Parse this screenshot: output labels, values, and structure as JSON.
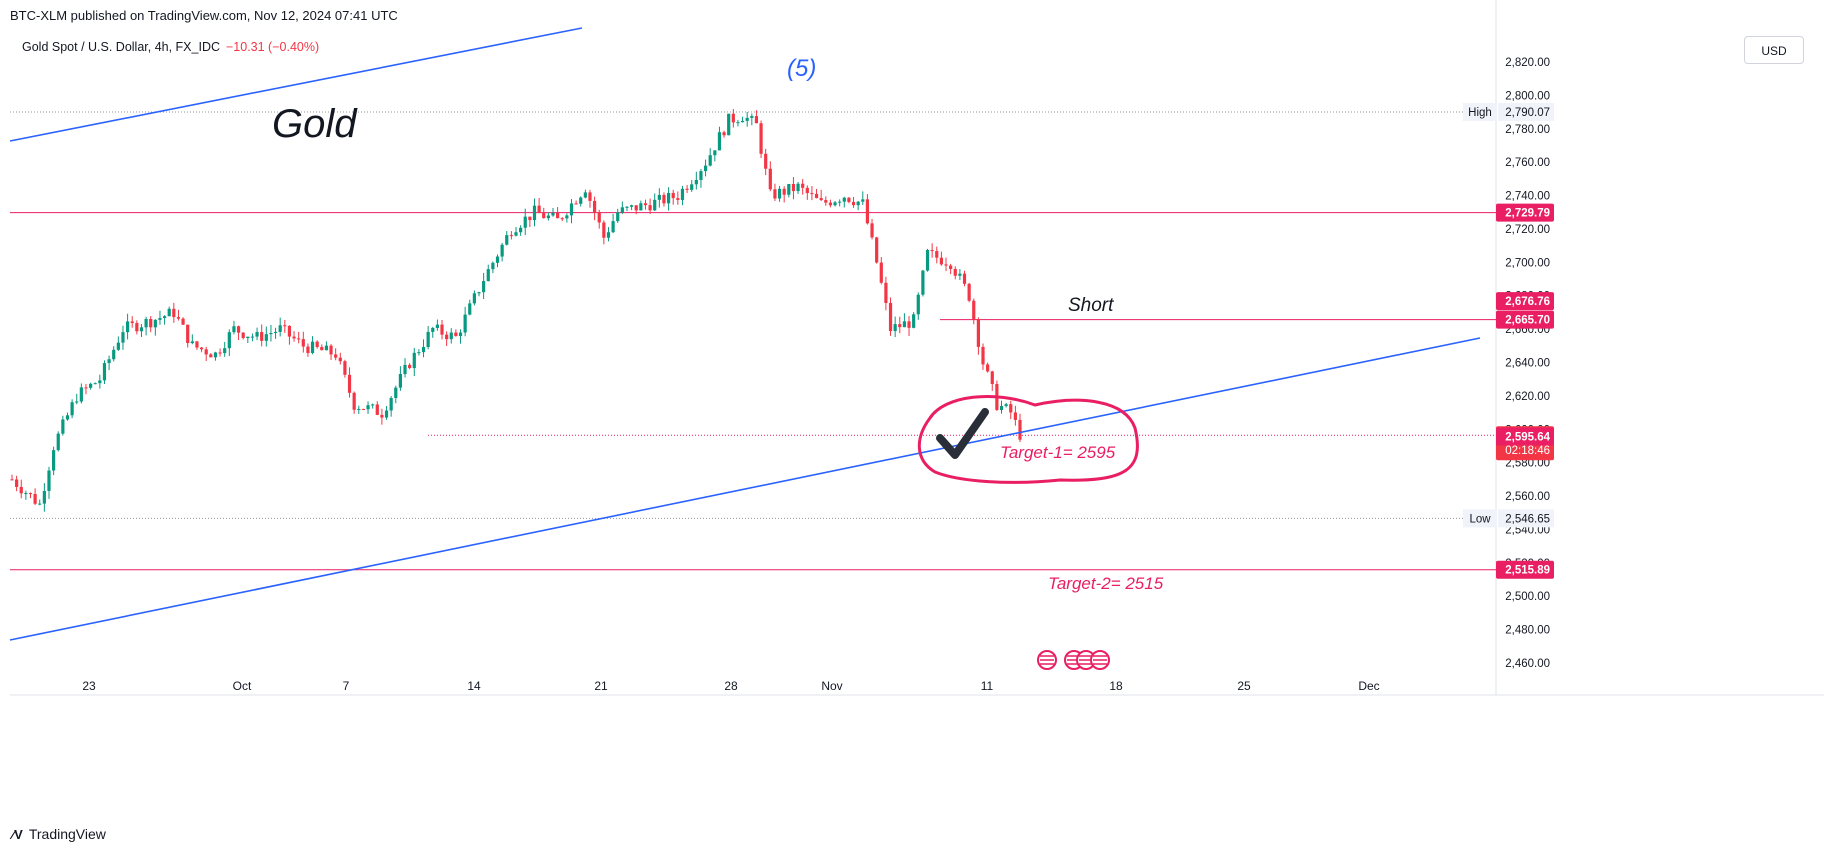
{
  "header": {
    "published": "BTC-XLM published on TradingView.com, Nov 12, 2024 07:41 UTC"
  },
  "symbol": {
    "name": "Gold Spot / U.S. Dollar, 4h, FX_IDC",
    "change": "−10.31 (−0.40%)"
  },
  "currency": "USD",
  "footer": {
    "brand": "TradingView"
  },
  "colors": {
    "up": "#089981",
    "down": "#f23645",
    "trendline": "#2962ff",
    "level": "#e91e63",
    "annotation": "#e91e63"
  },
  "annotations": {
    "title": "Gold",
    "wave": "(5)",
    "short": "Short",
    "target1": "Target-1= 2595",
    "target2": "Target-2= 2515"
  },
  "chart_data": {
    "type": "candlestick",
    "title": "Gold Spot / U.S. Dollar, 4h, FX_IDC",
    "ylim": [
      2448,
      2832
    ],
    "y_ticks": [
      2460,
      2480,
      2500,
      2520,
      2540,
      2560,
      2580,
      2600,
      2620,
      2640,
      2660,
      2680,
      2700,
      2720,
      2740,
      2760,
      2780,
      2800,
      2820
    ],
    "x_labels": [
      "23",
      "Oct",
      "7",
      "14",
      "21",
      "28",
      "Nov",
      "11",
      "18",
      "25",
      "Dec"
    ],
    "price_labels": [
      {
        "text": "2,790.07",
        "tag": "High",
        "value": 2790.07,
        "kind": "high"
      },
      {
        "text": "2,729.79",
        "value": 2729.79,
        "kind": "level"
      },
      {
        "text": "2,676.76",
        "value": 2676.76,
        "kind": "level"
      },
      {
        "text": "2,665.70",
        "value": 2665.7,
        "kind": "level"
      },
      {
        "text": "2,596.46",
        "value": 2596.46,
        "kind": "current",
        "countdown": "02:18:46"
      },
      {
        "text": "2,595.64",
        "value": 2595.64,
        "kind": "level"
      },
      {
        "text": "2,546.65",
        "tag": "Low",
        "value": 2546.65,
        "kind": "low"
      },
      {
        "text": "2,515.89",
        "value": 2515.89,
        "kind": "level"
      }
    ],
    "close_path": [
      [
        0,
        2570
      ],
      [
        6,
        2555
      ],
      [
        9,
        2590
      ],
      [
        14,
        2620
      ],
      [
        19,
        2630
      ],
      [
        24,
        2660
      ],
      [
        30,
        2665
      ],
      [
        35,
        2670
      ],
      [
        39,
        2650
      ],
      [
        44,
        2645
      ],
      [
        48,
        2660
      ],
      [
        53,
        2655
      ],
      [
        58,
        2660
      ],
      [
        63,
        2650
      ],
      [
        70,
        2645
      ],
      [
        74,
        2615
      ],
      [
        80,
        2610
      ],
      [
        86,
        2640
      ],
      [
        91,
        2660
      ],
      [
        96,
        2655
      ],
      [
        102,
        2690
      ],
      [
        108,
        2720
      ],
      [
        113,
        2730
      ],
      [
        118,
        2725
      ],
      [
        124,
        2745
      ],
      [
        128,
        2715
      ],
      [
        131,
        2730
      ],
      [
        138,
        2735
      ],
      [
        144,
        2740
      ],
      [
        150,
        2760
      ],
      [
        155,
        2785
      ],
      [
        158,
        2788
      ],
      [
        161,
        2782
      ],
      [
        164,
        2740
      ],
      [
        170,
        2745
      ],
      [
        175,
        2735
      ],
      [
        180,
        2740
      ],
      [
        184,
        2735
      ],
      [
        187,
        2700
      ],
      [
        190,
        2660
      ],
      [
        195,
        2665
      ],
      [
        198,
        2705
      ],
      [
        203,
        2700
      ],
      [
        207,
        2680
      ],
      [
        210,
        2640
      ],
      [
        213,
        2615
      ],
      [
        216,
        2610
      ],
      [
        218,
        2597
      ]
    ]
  }
}
